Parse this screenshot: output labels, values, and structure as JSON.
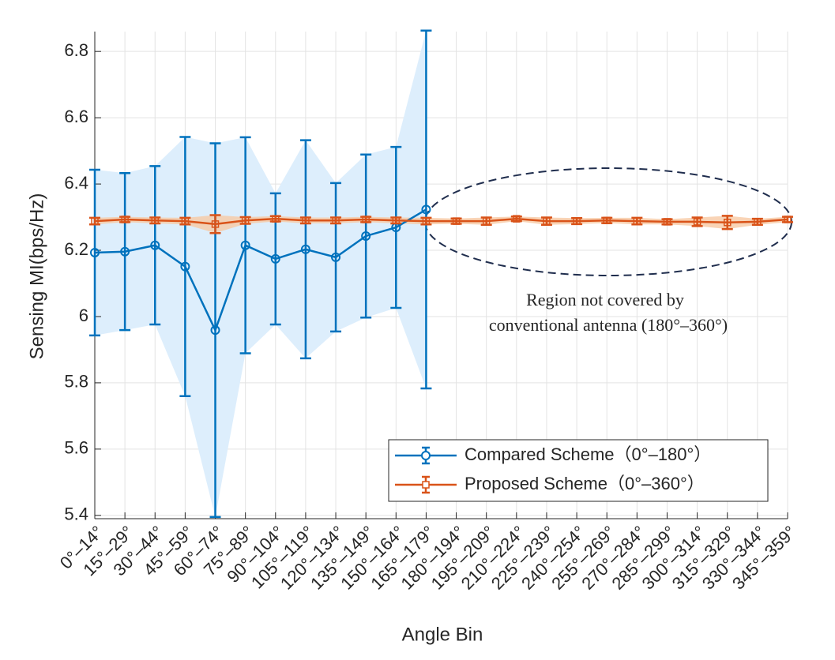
{
  "chart_data": {
    "type": "errorbar_line",
    "xlabel": "Angle Bin",
    "ylabel": "Sensing MI(bps/Hz)",
    "categories": [
      "0°–14°",
      "15°–29°",
      "30°–44°",
      "45°–59°",
      "60°–74°",
      "75°–89°",
      "90°–104°",
      "105°–119°",
      "120°–134°",
      "135°–149°",
      "150°–164°",
      "165°–179°",
      "180°–194°",
      "195°–209°",
      "210°–224°",
      "225°–239°",
      "240°–254°",
      "255°–269°",
      "270°–284°",
      "285°–299°",
      "300°–314°",
      "315°–329°",
      "330°–344°",
      "345°–359°"
    ],
    "series": [
      {
        "name": "Compared Scheme（0°–180°）",
        "color": "#0072bd",
        "fill": "#ddeefc",
        "marker": "circle",
        "values": [
          6.193,
          6.196,
          6.215,
          6.151,
          5.959,
          6.215,
          6.174,
          6.203,
          6.179,
          6.243,
          6.269,
          6.323,
          null,
          null,
          null,
          null,
          null,
          null,
          null,
          null,
          null,
          null,
          null,
          null
        ],
        "errors": [
          0.25,
          0.237,
          0.239,
          0.391,
          0.564,
          0.326,
          0.198,
          0.329,
          0.224,
          0.246,
          0.243,
          0.54,
          null,
          null,
          null,
          null,
          null,
          null,
          null,
          null,
          null,
          null,
          null,
          null
        ]
      },
      {
        "name": "Proposed Scheme（0°–360°）",
        "color": "#d95319",
        "fill": "#f8c9a4",
        "marker": "square",
        "values": [
          6.288,
          6.293,
          6.29,
          6.288,
          6.279,
          6.29,
          6.295,
          6.29,
          6.29,
          6.293,
          6.29,
          6.288,
          6.288,
          6.288,
          6.295,
          6.288,
          6.288,
          6.29,
          6.288,
          6.286,
          6.286,
          6.284,
          6.286,
          6.293
        ],
        "errors": [
          0.01,
          0.008,
          0.009,
          0.01,
          0.027,
          0.01,
          0.008,
          0.009,
          0.009,
          0.008,
          0.009,
          0.01,
          0.008,
          0.011,
          0.007,
          0.011,
          0.009,
          0.008,
          0.01,
          0.008,
          0.013,
          0.02,
          0.009,
          0.008
        ]
      }
    ],
    "ylim": [
      5.39,
      6.86
    ],
    "yticks": [
      5.4,
      5.6,
      5.8,
      6,
      6.2,
      6.4,
      6.6,
      6.8
    ],
    "grid": true,
    "legend": "lower right",
    "annotation": [
      "Region not covered by",
      "conventional antenna (180°–360°)"
    ]
  }
}
